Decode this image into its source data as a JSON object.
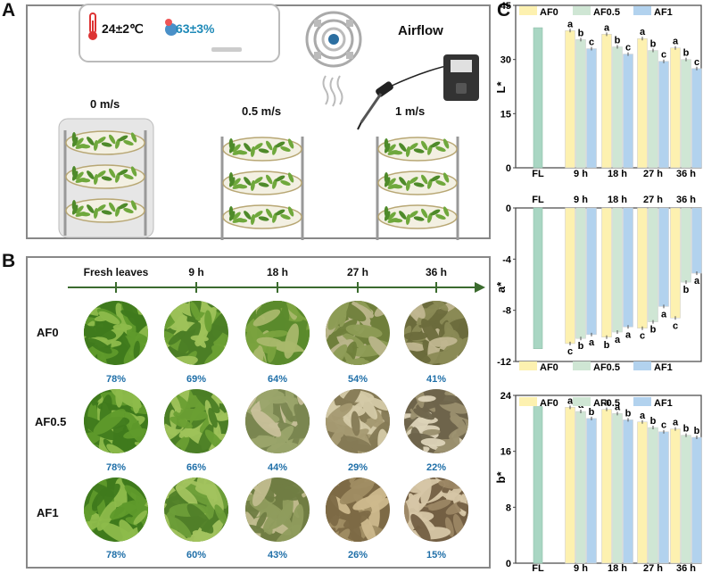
{
  "panels": {
    "a": "A",
    "b": "B",
    "c": "C"
  },
  "panel_a": {
    "temperature": "24±2℃",
    "humidity": "63±3%",
    "airflow_label": "Airflow",
    "speeds": [
      "0 m/s",
      "0.5 m/s",
      "1 m/s"
    ]
  },
  "panel_b": {
    "timepoints": [
      "Fresh leaves",
      "9 h",
      "18 h",
      "27 h",
      "36 h"
    ],
    "rows": [
      {
        "label": "AF0",
        "moisture": [
          "78%",
          "69%",
          "64%",
          "54%",
          "41%"
        ]
      },
      {
        "label": "AF0.5",
        "moisture": [
          "78%",
          "66%",
          "44%",
          "29%",
          "22%"
        ]
      },
      {
        "label": "AF1",
        "moisture": [
          "78%",
          "60%",
          "43%",
          "26%",
          "15%"
        ]
      }
    ]
  },
  "colors": {
    "AF0": "#fdf1b0",
    "AF0.5": "#cfe6d4",
    "AF1": "#b2d2ee",
    "FL": "#a9d6c3"
  },
  "chart_data": [
    {
      "type": "bar",
      "title": "",
      "ylabel": "L*",
      "xlabel": "",
      "categories": [
        "FL",
        "9 h",
        "18 h",
        "27 h",
        "36 h"
      ],
      "ylim": [
        0,
        45
      ],
      "yticks": [
        0,
        15,
        30,
        45
      ],
      "fl_value": 38.8,
      "series": [
        {
          "name": "AF0",
          "values": [
            null,
            38.0,
            37.0,
            35.8,
            33.2
          ],
          "letters": [
            "",
            "a",
            "a",
            "a",
            "a"
          ]
        },
        {
          "name": "AF0.5",
          "values": [
            null,
            35.5,
            33.5,
            32.5,
            30.0
          ],
          "letters": [
            "",
            "b",
            "b",
            "b",
            "b"
          ]
        },
        {
          "name": "AF1",
          "values": [
            null,
            33.0,
            31.5,
            29.5,
            27.5
          ],
          "letters": [
            "",
            "c",
            "c",
            "c",
            "c"
          ]
        }
      ],
      "legend": "top",
      "xlabels_position": "bottom"
    },
    {
      "type": "bar",
      "title": "",
      "ylabel": "a*",
      "xlabel": "",
      "categories": [
        "FL",
        "9 h",
        "18 h",
        "27 h",
        "36 h"
      ],
      "ylim": [
        -12,
        0
      ],
      "yticks": [
        0,
        -4,
        -8,
        -12
      ],
      "fl_value": -11.0,
      "series": [
        {
          "name": "AF0",
          "values": [
            null,
            -10.6,
            -10.1,
            -9.4,
            -8.6
          ],
          "letters": [
            "",
            "c",
            "b",
            "c",
            "c"
          ]
        },
        {
          "name": "AF0.5",
          "values": [
            null,
            -10.2,
            -9.7,
            -8.9,
            -5.8
          ],
          "letters": [
            "",
            "b",
            "a",
            "b",
            "b"
          ]
        },
        {
          "name": "AF1",
          "values": [
            null,
            -9.9,
            -9.3,
            -7.7,
            -5.1
          ],
          "letters": [
            "",
            "a",
            "a",
            "a",
            "a"
          ]
        }
      ],
      "legend": "bottom",
      "xlabels_position": "top"
    },
    {
      "type": "bar",
      "title": "",
      "ylabel": "b*",
      "xlabel": "",
      "categories": [
        "FL",
        "9 h",
        "18 h",
        "27 h",
        "36 h"
      ],
      "ylim": [
        0,
        24
      ],
      "yticks": [
        0,
        8,
        16,
        24
      ],
      "fl_value": 22.4,
      "series": [
        {
          "name": "AF0",
          "values": [
            null,
            22.3,
            22.0,
            20.2,
            19.2
          ],
          "letters": [
            "",
            "a",
            "a",
            "a",
            "a"
          ]
        },
        {
          "name": "AF0.5",
          "values": [
            null,
            21.7,
            21.4,
            19.4,
            18.3
          ],
          "letters": [
            "",
            "a",
            "a",
            "b",
            "b"
          ]
        },
        {
          "name": "AF1",
          "values": [
            null,
            20.7,
            20.5,
            18.8,
            18.0
          ],
          "letters": [
            "",
            "b",
            "b",
            "c",
            "b"
          ]
        }
      ],
      "legend": "top",
      "xlabels_position": "bottom"
    }
  ]
}
